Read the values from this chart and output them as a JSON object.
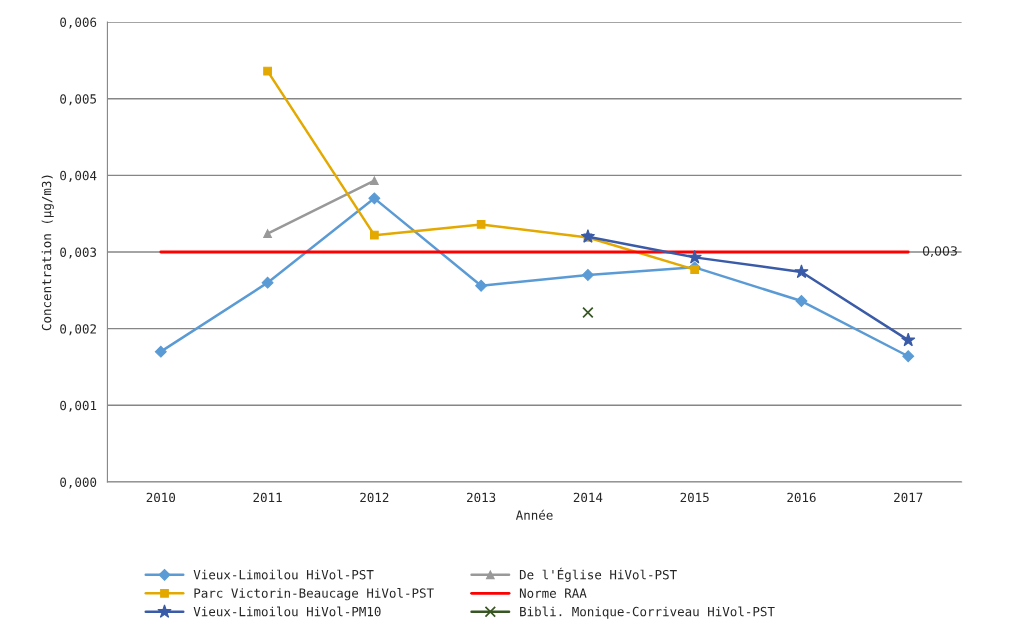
{
  "chart_data": {
    "type": "line",
    "xlabel": "Année",
    "ylabel": "Concentration (µg/m3)",
    "categories": [
      "2010",
      "2011",
      "2012",
      "2013",
      "2014",
      "2015",
      "2016",
      "2017"
    ],
    "ylim": [
      0,
      0.006
    ],
    "yticks": [
      {
        "value": 0,
        "label": "0,000"
      },
      {
        "value": 0.001,
        "label": "0,001"
      },
      {
        "value": 0.002,
        "label": "0,002"
      },
      {
        "value": 0.003,
        "label": "0,003"
      },
      {
        "value": 0.004,
        "label": "0,004"
      },
      {
        "value": 0.005,
        "label": "0,005"
      },
      {
        "value": 0.006,
        "label": "0,006"
      }
    ],
    "grid": "y",
    "legend": "bottom",
    "series": [
      {
        "name": "Vieux-Limoilou HiVol-PST",
        "color": "#5b9bd5",
        "marker": "diamond",
        "values": [
          0.0017,
          0.0026,
          0.0037,
          0.00256,
          0.0027,
          0.0028,
          0.00236,
          0.00164
        ]
      },
      {
        "name": "De l'Église HiVol-PST",
        "color": "#999999",
        "marker": "triangle",
        "values": [
          null,
          0.00324,
          0.00393,
          null,
          null,
          null,
          null,
          null
        ]
      },
      {
        "name": "Parc Victorin-Beaucage HiVol-PST",
        "color": "#e3a900",
        "marker": "square",
        "values": [
          null,
          0.00536,
          0.00322,
          0.00336,
          0.00319,
          0.00277,
          null,
          null
        ]
      },
      {
        "name": "Norme RAA",
        "color": "#ff0000",
        "marker": "none",
        "values": [
          0.003,
          0.003,
          0.003,
          0.003,
          0.003,
          0.003,
          0.003,
          0.003
        ],
        "value_labels": [
          null,
          null,
          null,
          null,
          null,
          null,
          null,
          "0,003"
        ]
      },
      {
        "name": "Vieux-Limoilou HiVol-PM10",
        "color": "#3a5ba8",
        "marker": "star",
        "values": [
          null,
          null,
          null,
          null,
          0.0032,
          0.00293,
          0.00274,
          0.00185
        ]
      },
      {
        "name": "Bibli. Monique-Corriveau HiVol-PST",
        "color": "#375623",
        "marker": "cross",
        "values": [
          null,
          null,
          null,
          null,
          0.00221,
          null,
          null,
          null
        ]
      }
    ]
  }
}
